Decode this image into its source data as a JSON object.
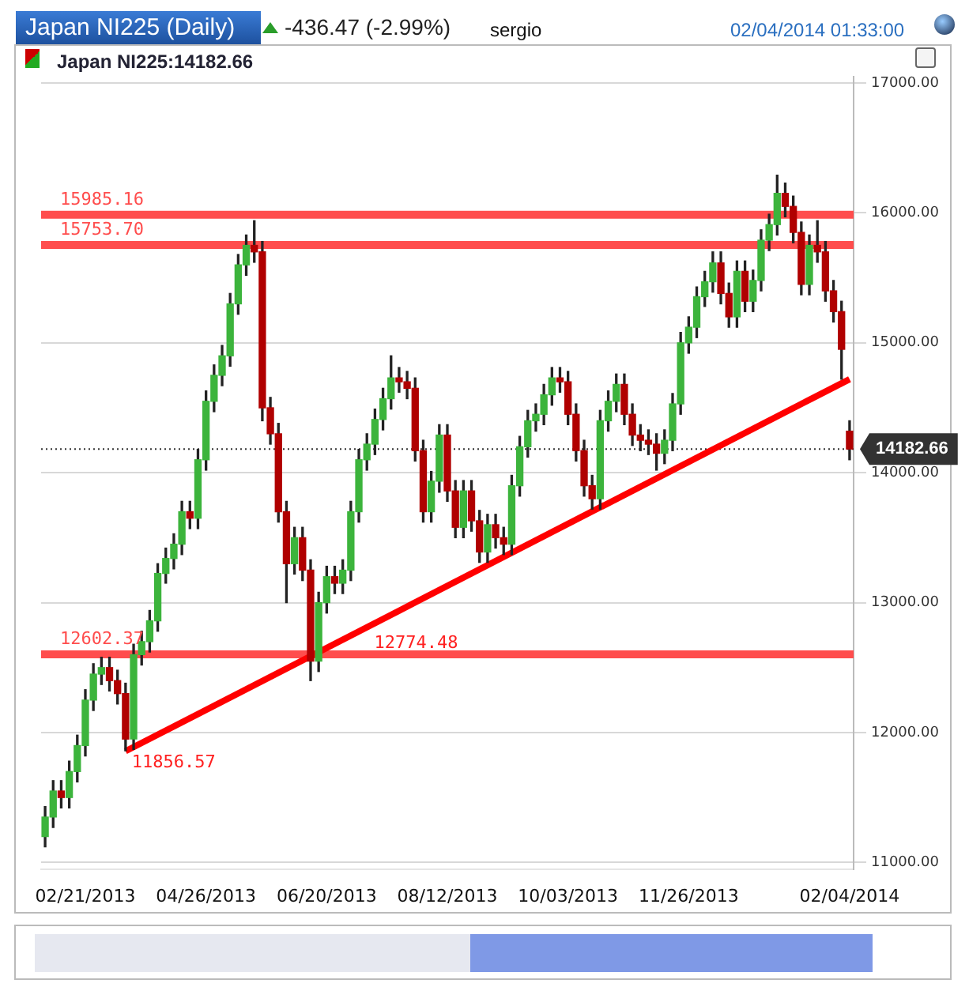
{
  "chart_data": {
    "type": "candlestick",
    "title": "Japan NI225 (Daily)",
    "subtitle": "-436.47 (-2.99%)",
    "annotations": [
      "sergio",
      "02/04/2014 01:33:00",
      "Japan NI225:14182.66",
      "11856.57",
      "12774.48"
    ],
    "categories": [
      null,
      null,
      null,
      null,
      null,
      "02/21/2013",
      null,
      null,
      null,
      null,
      null,
      null,
      null,
      null,
      null,
      null,
      null,
      null,
      null,
      null,
      "04/26/2013",
      null,
      null,
      null,
      null,
      null,
      null,
      null,
      null,
      null,
      null,
      null,
      null,
      null,
      null,
      "06/20/2013",
      null,
      null,
      null,
      null,
      null,
      null,
      null,
      null,
      null,
      null,
      null,
      null,
      null,
      null,
      "08/12/2013",
      null,
      null,
      null,
      null,
      null,
      null,
      null,
      null,
      null,
      null,
      null,
      null,
      null,
      null,
      "10/03/2013",
      null,
      null,
      null,
      null,
      null,
      null,
      null,
      null,
      null,
      null,
      null,
      null,
      null,
      null,
      "11/26/2013",
      null,
      null,
      null,
      null,
      null,
      null,
      null,
      null,
      null,
      null,
      null,
      null,
      null,
      null,
      null,
      null,
      null,
      null,
      null,
      "02/04/2014"
    ],
    "ohlc": [
      [
        11200,
        11430,
        11120,
        11350
      ],
      [
        11350,
        11630,
        11270,
        11550
      ],
      [
        11550,
        11630,
        11420,
        11500
      ],
      [
        11500,
        11780,
        11420,
        11700
      ],
      [
        11700,
        11980,
        11620,
        11900
      ],
      [
        11900,
        12330,
        11820,
        12250
      ],
      [
        12250,
        12530,
        12170,
        12450
      ],
      [
        12450,
        12580,
        12370,
        12500
      ],
      [
        12500,
        12580,
        12320,
        12400
      ],
      [
        12400,
        12480,
        12220,
        12300
      ],
      [
        12300,
        12380,
        11860,
        11950
      ],
      [
        11950,
        12680,
        11870,
        12600
      ],
      [
        12600,
        12780,
        12520,
        12700
      ],
      [
        12700,
        12940,
        12620,
        12860
      ],
      [
        12860,
        13300,
        12780,
        13225
      ],
      [
        13225,
        13420,
        13150,
        13340
      ],
      [
        13340,
        13530,
        13260,
        13450
      ],
      [
        13450,
        13780,
        13370,
        13700
      ],
      [
        13700,
        13780,
        13570,
        13650
      ],
      [
        13650,
        14180,
        13570,
        14100
      ],
      [
        14100,
        14630,
        14020,
        14550
      ],
      [
        14550,
        14830,
        14470,
        14750
      ],
      [
        14750,
        14980,
        14670,
        14900
      ],
      [
        14900,
        15380,
        14820,
        15300
      ],
      [
        15300,
        15680,
        15220,
        15600
      ],
      [
        15600,
        15830,
        15520,
        15750
      ],
      [
        15750,
        15940,
        15620,
        15700
      ],
      [
        15700,
        15780,
        14400,
        14500
      ],
      [
        14500,
        14580,
        14220,
        14300
      ],
      [
        14300,
        14380,
        13620,
        13700
      ],
      [
        13700,
        13780,
        13000,
        13300
      ],
      [
        13300,
        13580,
        13220,
        13500
      ],
      [
        13500,
        13580,
        13170,
        13250
      ],
      [
        13250,
        13330,
        12400,
        12550
      ],
      [
        12550,
        13080,
        12470,
        13000
      ],
      [
        13000,
        13280,
        12920,
        13200
      ],
      [
        13200,
        13280,
        13070,
        13150
      ],
      [
        13150,
        13330,
        13070,
        13250
      ],
      [
        13250,
        13780,
        13170,
        13700
      ],
      [
        13700,
        14180,
        13620,
        14100
      ],
      [
        14100,
        14300,
        14020,
        14220
      ],
      [
        14220,
        14490,
        14140,
        14410
      ],
      [
        14410,
        14650,
        14330,
        14570
      ],
      [
        14570,
        14900,
        14490,
        14730
      ],
      [
        14730,
        14810,
        14620,
        14700
      ],
      [
        14700,
        14780,
        14570,
        14650
      ],
      [
        14650,
        14730,
        14090,
        14170
      ],
      [
        14170,
        14250,
        13620,
        13700
      ],
      [
        13700,
        14010,
        13620,
        13935
      ],
      [
        13935,
        14370,
        13850,
        14290
      ],
      [
        14290,
        14370,
        13780,
        13860
      ],
      [
        13860,
        13940,
        13500,
        13580
      ],
      [
        13580,
        13940,
        13500,
        13860
      ],
      [
        13860,
        13940,
        13550,
        13630
      ],
      [
        13630,
        13710,
        13310,
        13390
      ],
      [
        13390,
        13680,
        13310,
        13600
      ],
      [
        13600,
        13680,
        13420,
        13500
      ],
      [
        13500,
        13580,
        13370,
        13450
      ],
      [
        13450,
        13980,
        13370,
        13900
      ],
      [
        13900,
        14280,
        13820,
        14200
      ],
      [
        14200,
        14480,
        14120,
        14400
      ],
      [
        14400,
        14530,
        14320,
        14450
      ],
      [
        14450,
        14680,
        14370,
        14600
      ],
      [
        14600,
        14810,
        14520,
        14730
      ],
      [
        14730,
        14810,
        14620,
        14700
      ],
      [
        14700,
        14780,
        14370,
        14450
      ],
      [
        14450,
        14530,
        14090,
        14170
      ],
      [
        14170,
        14250,
        13820,
        13900
      ],
      [
        13900,
        13980,
        13720,
        13800
      ],
      [
        13800,
        14480,
        13720,
        14400
      ],
      [
        14400,
        14630,
        14320,
        14550
      ],
      [
        14550,
        14760,
        14470,
        14680
      ],
      [
        14680,
        14760,
        14370,
        14450
      ],
      [
        14450,
        14530,
        14210,
        14290
      ],
      [
        14290,
        14370,
        14170,
        14250
      ],
      [
        14250,
        14330,
        14140,
        14220
      ],
      [
        14220,
        14300,
        14020,
        14150
      ],
      [
        14150,
        14330,
        14070,
        14250
      ],
      [
        14250,
        14610,
        14170,
        14530
      ],
      [
        14530,
        15080,
        14450,
        15000
      ],
      [
        15000,
        15200,
        14920,
        15120
      ],
      [
        15120,
        15430,
        15040,
        15355
      ],
      [
        15355,
        15550,
        15280,
        15470
      ],
      [
        15470,
        15700,
        15390,
        15615
      ],
      [
        15615,
        15700,
        15300,
        15380
      ],
      [
        15380,
        15460,
        15120,
        15200
      ],
      [
        15200,
        15630,
        15120,
        15550
      ],
      [
        15550,
        15630,
        15240,
        15320
      ],
      [
        15320,
        15560,
        15240,
        15480
      ],
      [
        15480,
        15870,
        15400,
        15790
      ],
      [
        15790,
        15990,
        15710,
        15910
      ],
      [
        15910,
        16290,
        15830,
        16150
      ],
      [
        16150,
        16230,
        15970,
        16050
      ],
      [
        16050,
        16130,
        15770,
        15850
      ],
      [
        15850,
        15930,
        15370,
        15450
      ],
      [
        15450,
        15830,
        15370,
        15750
      ],
      [
        15750,
        15940,
        15620,
        15700
      ],
      [
        15700,
        15780,
        15320,
        15400
      ],
      [
        15400,
        15480,
        15160,
        15240
      ],
      [
        15240,
        15320,
        14720,
        14950
      ],
      [
        14320,
        14400,
        14100,
        14182.66
      ]
    ],
    "series": [
      {
        "type": "line",
        "color": "#ff0000",
        "values": [
          null,
          null,
          null,
          null,
          null,
          null,
          null,
          null,
          null,
          null,
          11856.57,
          null,
          null,
          null,
          null,
          null,
          null,
          null,
          null,
          null,
          null,
          null,
          null,
          null,
          null,
          null,
          null,
          null,
          null,
          null,
          null,
          null,
          null,
          null,
          null,
          null,
          null,
          null,
          null,
          null,
          null,
          null,
          null,
          null,
          null,
          null,
          null,
          null,
          null,
          null,
          null,
          null,
          null,
          null,
          null,
          null,
          null,
          null,
          null,
          null,
          null,
          null,
          null,
          null,
          null,
          null,
          null,
          null,
          null,
          null,
          null,
          null,
          null,
          null,
          null,
          null,
          null,
          null,
          null,
          null,
          null,
          null,
          null,
          null,
          null,
          null,
          null,
          null,
          null,
          null,
          null,
          null,
          null,
          null,
          null,
          null,
          null,
          null,
          null,
          null,
          14720
        ]
      }
    ],
    "ylim": [
      10950,
      17050
    ],
    "yticks": [
      {
        "value": 11000,
        "label": "11000.00"
      },
      {
        "value": 12000,
        "label": "12000.00"
      },
      {
        "value": 13000,
        "label": "13000.00"
      },
      {
        "value": 14000,
        "label": "14000.00"
      },
      {
        "value": 15000,
        "label": "15000.00"
      },
      {
        "value": 16000,
        "label": "16000.00"
      },
      {
        "value": 17000,
        "label": "17000.00"
      }
    ],
    "ref_lines": [
      {
        "axis": "y",
        "value": 15985.16,
        "label": "15985.16",
        "color": "#ff4d4d"
      },
      {
        "axis": "y",
        "value": 15753.7,
        "label": "15753.70",
        "color": "#ff4d4d"
      },
      {
        "axis": "y",
        "value": 12602.37,
        "label": "12602.37",
        "color": "#ff4d4d"
      },
      {
        "axis": "y",
        "value": 14182.66,
        "label": "14182.66",
        "color": "#333333",
        "line_style": "dotted"
      }
    ],
    "grid": "y",
    "legend": false
  }
}
